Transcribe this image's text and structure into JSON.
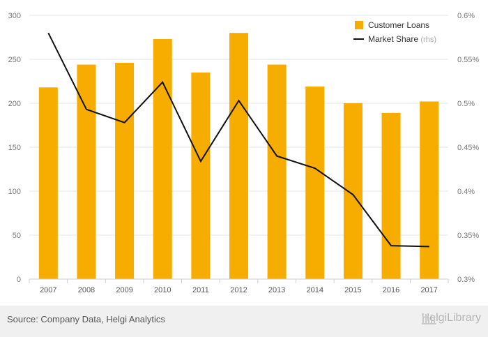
{
  "chart_data": {
    "type": "bar",
    "categories": [
      "2007",
      "2008",
      "2009",
      "2010",
      "2011",
      "2012",
      "2013",
      "2014",
      "2015",
      "2016",
      "2017"
    ],
    "series": [
      {
        "name": "Customer Loans",
        "type": "bar",
        "axis": "left",
        "values": [
          218,
          244,
          246,
          273,
          235,
          280,
          244,
          219,
          200,
          189,
          202
        ]
      },
      {
        "name": "Market Share",
        "type": "line",
        "axis": "right",
        "values": [
          0.58,
          0.493,
          0.478,
          0.524,
          0.434,
          0.503,
          0.44,
          0.426,
          0.396,
          0.338,
          0.337
        ]
      }
    ],
    "y_left": {
      "min": 0,
      "max": 300,
      "ticks": [
        "0",
        "50",
        "100",
        "150",
        "200",
        "250",
        "300"
      ]
    },
    "y_right": {
      "min": 0.3,
      "max": 0.6,
      "ticks": [
        "0.3%",
        "0.35%",
        "0.4%",
        "0.45%",
        "0.5%",
        "0.55%",
        "0.6%"
      ]
    },
    "legend": {
      "position": "top-right",
      "items": [
        {
          "label": "Customer Loans",
          "suffix": ""
        },
        {
          "label": "Market Share",
          "suffix": "(rhs)"
        }
      ]
    },
    "grid": true
  },
  "colors": {
    "bar": "#f7ac00",
    "line": "#111111",
    "grid": "#e4e4e4",
    "footer": "#f0f0f0"
  },
  "footer": {
    "source": "Source: Company Data, Helgi Analytics",
    "brand": "HelgiLibrary"
  }
}
